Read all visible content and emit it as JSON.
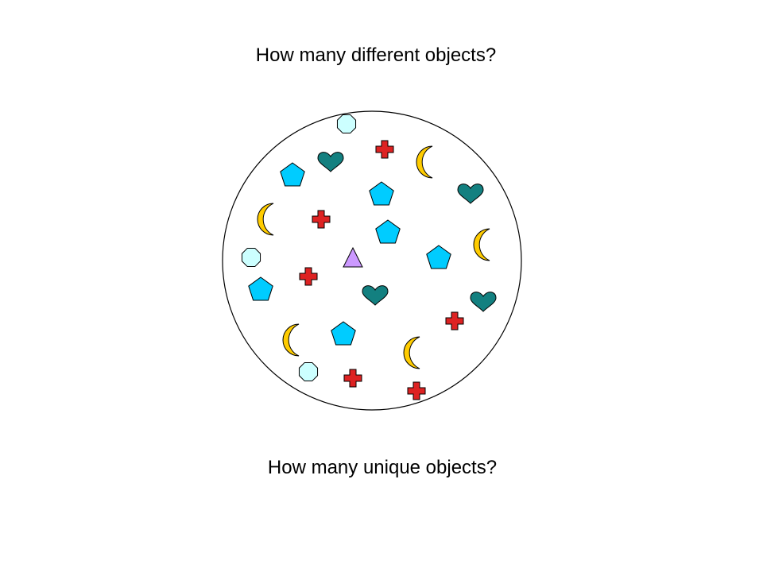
{
  "questions": {
    "top": "How many different objects?",
    "bottom": "How many unique objects?"
  },
  "colors": {
    "octagon": "#ccffff",
    "cross": "#dd2222",
    "moon": "#ffcc00",
    "heart": "#138080",
    "pentagon": "#00ccff",
    "triangle": "#cc99ff",
    "outline": "#000000"
  },
  "shape_types": [
    "octagon",
    "cross",
    "moon",
    "heart",
    "pentagon",
    "triangle"
  ],
  "shape_counts": {
    "octagon": 3,
    "cross": 6,
    "moon": 5,
    "heart": 4,
    "pentagon": 6,
    "triangle": 1
  }
}
